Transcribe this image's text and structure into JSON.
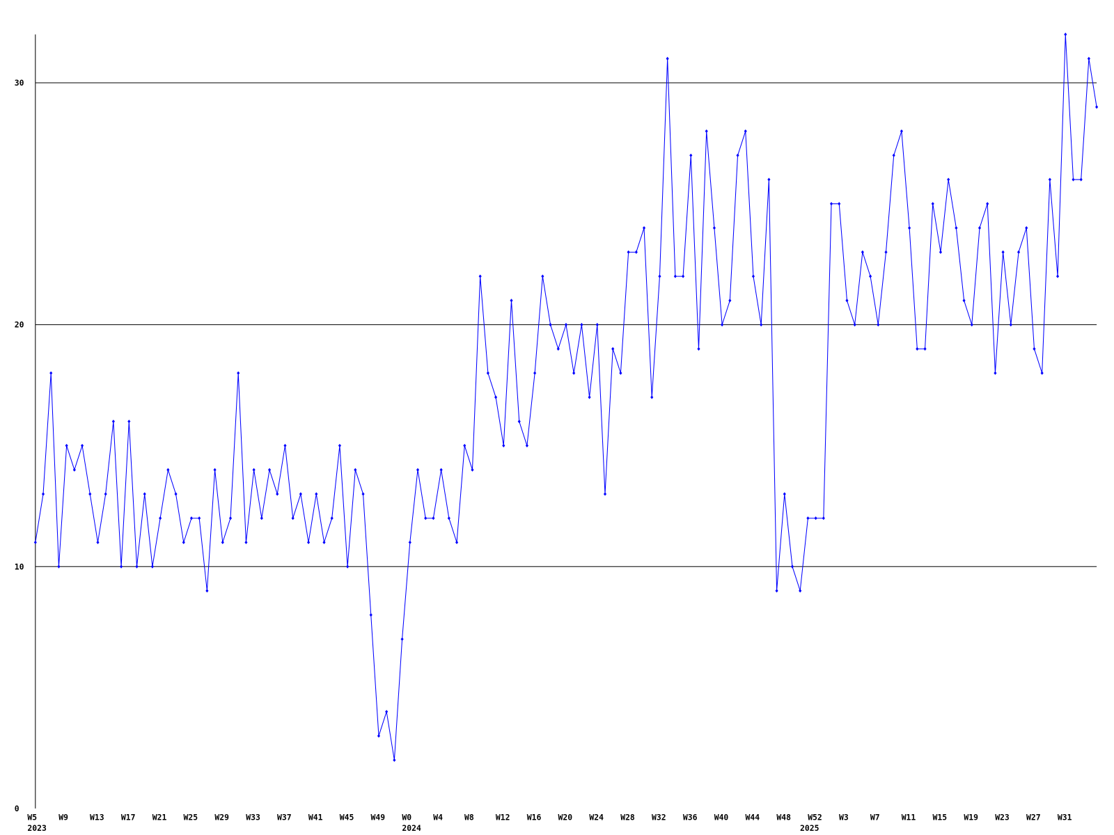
{
  "chart_data": {
    "type": "line",
    "color": "#0000ff",
    "grid": true,
    "ylim": [
      0,
      32
    ],
    "yticks": [
      0,
      10,
      20,
      30
    ],
    "categories": [
      "W5",
      null,
      null,
      null,
      "W9",
      null,
      null,
      null,
      "W13",
      null,
      null,
      null,
      "W17",
      null,
      null,
      null,
      "W21",
      null,
      null,
      null,
      "W25",
      null,
      null,
      null,
      "W29",
      null,
      null,
      null,
      "W33",
      null,
      null,
      null,
      "W37",
      null,
      null,
      null,
      "W41",
      null,
      null,
      null,
      "W45",
      null,
      null,
      null,
      "W49",
      null,
      null,
      null,
      "W0",
      null,
      null,
      null,
      "W4",
      null,
      null,
      null,
      "W8",
      null,
      null,
      null,
      "W12",
      null,
      null,
      null,
      "W16",
      null,
      null,
      null,
      "W20",
      null,
      null,
      null,
      "W24",
      null,
      null,
      null,
      "W28",
      null,
      null,
      null,
      "W32",
      null,
      null,
      null,
      "W36",
      null,
      null,
      null,
      "W40",
      null,
      null,
      null,
      "W44",
      null,
      null,
      null,
      "W48",
      null,
      null,
      null,
      "W52",
      null,
      null,
      null,
      "W3",
      null,
      null,
      null,
      "W7",
      null,
      null,
      null,
      "W11",
      null,
      null,
      null,
      "W15",
      null,
      null,
      null,
      "W19",
      null,
      null,
      null,
      "W23",
      null,
      null,
      null,
      "W27",
      null,
      null,
      null,
      "W31",
      null,
      null,
      null,
      null
    ],
    "years": [
      "2023",
      null,
      null,
      null,
      null,
      null,
      null,
      null,
      null,
      null,
      null,
      null,
      null,
      null,
      null,
      null,
      null,
      null,
      null,
      null,
      null,
      null,
      null,
      null,
      null,
      null,
      null,
      null,
      null,
      null,
      null,
      null,
      null,
      null,
      null,
      null,
      null,
      null,
      null,
      null,
      null,
      null,
      null,
      null,
      null,
      null,
      null,
      null,
      "2024",
      null,
      null,
      null,
      null,
      null,
      null,
      null,
      null,
      null,
      null,
      null,
      null,
      null,
      null,
      null,
      null,
      null,
      null,
      null,
      null,
      null,
      null,
      null,
      null,
      null,
      null,
      null,
      null,
      null,
      null,
      null,
      null,
      null,
      null,
      null,
      null,
      null,
      null,
      null,
      null,
      null,
      null,
      null,
      null,
      null,
      null,
      null,
      null,
      null,
      null,
      "2025",
      null,
      null,
      null,
      null,
      null,
      null,
      null,
      null,
      null,
      null,
      null,
      null,
      null,
      null,
      null,
      null,
      null,
      null,
      null,
      null,
      null,
      null,
      null,
      null,
      null,
      null,
      null,
      null,
      null,
      null,
      null,
      null,
      null,
      null,
      null
    ],
    "values": [
      11,
      13,
      18,
      10,
      15,
      14,
      15,
      13,
      11,
      13,
      16,
      10,
      16,
      10,
      13,
      10,
      12,
      14,
      13,
      11,
      12,
      12,
      9,
      14,
      11,
      12,
      18,
      11,
      14,
      12,
      14,
      13,
      15,
      12,
      13,
      11,
      13,
      11,
      12,
      15,
      10,
      14,
      13,
      8,
      3,
      4,
      2,
      7,
      11,
      14,
      12,
      12,
      14,
      12,
      11,
      15,
      14,
      22,
      18,
      17,
      15,
      21,
      16,
      15,
      18,
      22,
      20,
      19,
      20,
      18,
      20,
      17,
      20,
      13,
      19,
      18,
      23,
      23,
      24,
      17,
      22,
      31,
      22,
      22,
      27,
      19,
      28,
      24,
      20,
      21,
      27,
      28,
      22,
      20,
      26,
      9,
      13,
      10,
      9,
      12,
      12,
      12,
      25,
      25,
      21,
      20,
      23,
      22,
      20,
      23,
      27,
      28,
      24,
      19,
      19,
      25,
      23,
      26,
      24,
      21,
      20,
      24,
      25,
      18,
      23,
      20,
      23,
      24,
      19,
      18,
      26,
      22,
      32,
      26,
      26,
      31,
      29
    ]
  }
}
